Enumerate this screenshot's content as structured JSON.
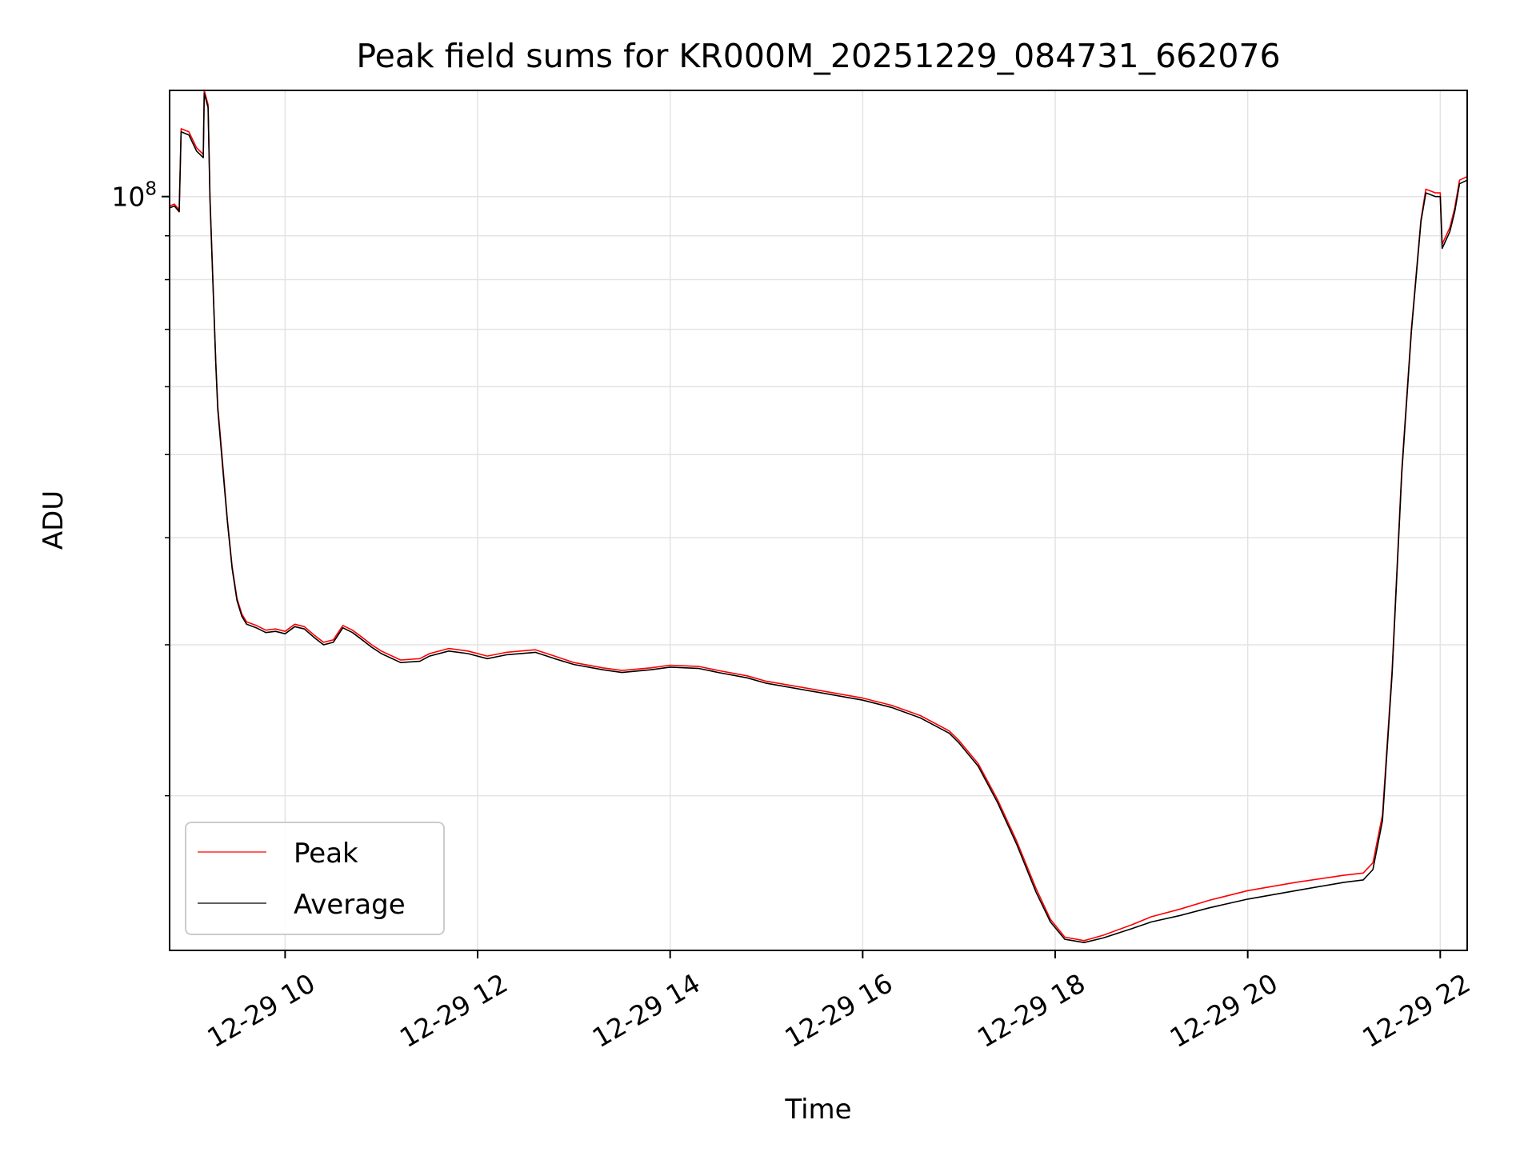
{
  "chart_data": {
    "type": "line",
    "title": "Peak field sums for KR000M_20251229_084731_662076",
    "xlabel": "Time",
    "ylabel": "ADU",
    "yscale": "log",
    "grid": true,
    "legend_position": "lower-left",
    "xlim": [
      8.8,
      22.28
    ],
    "ylim": [
      13200000,
      133000000
    ],
    "x_unit": "hours on 2025-12-29",
    "x_ticks": [
      {
        "value": 10,
        "label": "12-29 10"
      },
      {
        "value": 12,
        "label": "12-29 12"
      },
      {
        "value": 14,
        "label": "12-29 14"
      },
      {
        "value": 16,
        "label": "12-29 16"
      },
      {
        "value": 18,
        "label": "12-29 18"
      },
      {
        "value": 20,
        "label": "12-29 20"
      },
      {
        "value": 22,
        "label": "12-29 22"
      }
    ],
    "y_major_ticks": [
      {
        "value": 100000000,
        "base": "10",
        "exp": "8"
      }
    ],
    "y_minor_ticks": [
      20000000,
      30000000,
      40000000,
      50000000,
      60000000,
      70000000,
      80000000,
      90000000
    ],
    "series": [
      {
        "name": "Peak",
        "color": "#ff0000",
        "x": [
          8.8,
          8.85,
          8.9,
          8.92,
          9.0,
          9.08,
          9.15,
          9.16,
          9.2,
          9.22,
          9.25,
          9.28,
          9.3,
          9.35,
          9.4,
          9.45,
          9.5,
          9.55,
          9.6,
          9.7,
          9.8,
          9.9,
          10.0,
          10.1,
          10.2,
          10.3,
          10.4,
          10.5,
          10.6,
          10.7,
          10.8,
          10.9,
          11.0,
          11.2,
          11.4,
          11.5,
          11.7,
          11.9,
          12.1,
          12.3,
          12.6,
          12.8,
          13.0,
          13.3,
          13.5,
          13.8,
          14.0,
          14.3,
          14.5,
          14.8,
          15.0,
          15.5,
          16.0,
          16.3,
          16.6,
          16.9,
          17.0,
          17.2,
          17.4,
          17.6,
          17.8,
          17.95,
          18.1,
          18.3,
          18.5,
          18.8,
          19.0,
          19.3,
          19.6,
          20.0,
          20.5,
          21.0,
          21.2,
          21.3,
          21.4,
          21.5,
          21.6,
          21.7,
          21.8,
          21.85,
          21.9,
          21.95,
          22.0,
          22.02,
          22.1,
          22.15,
          22.2,
          22.28
        ],
        "y": [
          97500000,
          98000000,
          96500000,
          120000000,
          119000000,
          114000000,
          112000000,
          133000000,
          128000000,
          100000000,
          80000000,
          64000000,
          57000000,
          49000000,
          42000000,
          37000000,
          34000000,
          32600000,
          31900000,
          31600000,
          31200000,
          31300000,
          31100000,
          31700000,
          31500000,
          30800000,
          30200000,
          30400000,
          31600000,
          31200000,
          30600000,
          30000000,
          29500000,
          28800000,
          28900000,
          29300000,
          29700000,
          29500000,
          29100000,
          29400000,
          29600000,
          29100000,
          28600000,
          28200000,
          28000000,
          28200000,
          28400000,
          28300000,
          28000000,
          27600000,
          27200000,
          26600000,
          26000000,
          25500000,
          24800000,
          23800000,
          23200000,
          21800000,
          19800000,
          17700000,
          15600000,
          14350000,
          13680000,
          13550000,
          13750000,
          14150000,
          14450000,
          14750000,
          15100000,
          15500000,
          15850000,
          16150000,
          16250000,
          16700000,
          19000000,
          28000000,
          48000000,
          70000000,
          94000000,
          102000000,
          101500000,
          101000000,
          101000000,
          88000000,
          92000000,
          97000000,
          104500000,
          105500000
        ]
      },
      {
        "name": "Average",
        "color": "#000000",
        "x": [
          8.8,
          8.85,
          8.9,
          8.92,
          9.0,
          9.08,
          9.15,
          9.16,
          9.2,
          9.22,
          9.25,
          9.28,
          9.3,
          9.35,
          9.4,
          9.45,
          9.5,
          9.55,
          9.6,
          9.7,
          9.8,
          9.9,
          10.0,
          10.1,
          10.2,
          10.3,
          10.4,
          10.5,
          10.6,
          10.7,
          10.8,
          10.9,
          11.0,
          11.2,
          11.4,
          11.5,
          11.7,
          11.9,
          12.1,
          12.3,
          12.6,
          12.8,
          13.0,
          13.3,
          13.5,
          13.8,
          14.0,
          14.3,
          14.5,
          14.8,
          15.0,
          15.5,
          16.0,
          16.3,
          16.6,
          16.9,
          17.0,
          17.2,
          17.4,
          17.6,
          17.8,
          17.95,
          18.1,
          18.3,
          18.5,
          18.8,
          19.0,
          19.3,
          19.6,
          20.0,
          20.5,
          21.0,
          21.2,
          21.3,
          21.4,
          21.5,
          21.6,
          21.7,
          21.8,
          21.85,
          21.9,
          21.95,
          22.0,
          22.02,
          22.1,
          22.15,
          22.2,
          22.28
        ],
        "y": [
          97000000,
          97500000,
          96000000,
          119000000,
          118000000,
          113000000,
          111000000,
          132000000,
          127000000,
          99000000,
          79500000,
          63500000,
          56500000,
          48500000,
          41800000,
          36800000,
          33800000,
          32400000,
          31700000,
          31400000,
          31000000,
          31100000,
          30900000,
          31500000,
          31300000,
          30600000,
          30000000,
          30200000,
          31400000,
          31000000,
          30400000,
          29800000,
          29300000,
          28600000,
          28700000,
          29100000,
          29500000,
          29300000,
          28900000,
          29200000,
          29400000,
          28900000,
          28450000,
          28050000,
          27850000,
          28050000,
          28250000,
          28150000,
          27850000,
          27450000,
          27050000,
          26450000,
          25850000,
          25350000,
          24650000,
          23650000,
          23050000,
          21650000,
          19650000,
          17550000,
          15450000,
          14250000,
          13600000,
          13480000,
          13650000,
          14000000,
          14250000,
          14500000,
          14800000,
          15150000,
          15500000,
          15850000,
          15950000,
          16400000,
          18700000,
          27700000,
          47500000,
          69500000,
          93500000,
          101000000,
          100500000,
          100000000,
          100000000,
          87000000,
          91000000,
          96000000,
          103500000,
          104500000
        ]
      }
    ]
  }
}
